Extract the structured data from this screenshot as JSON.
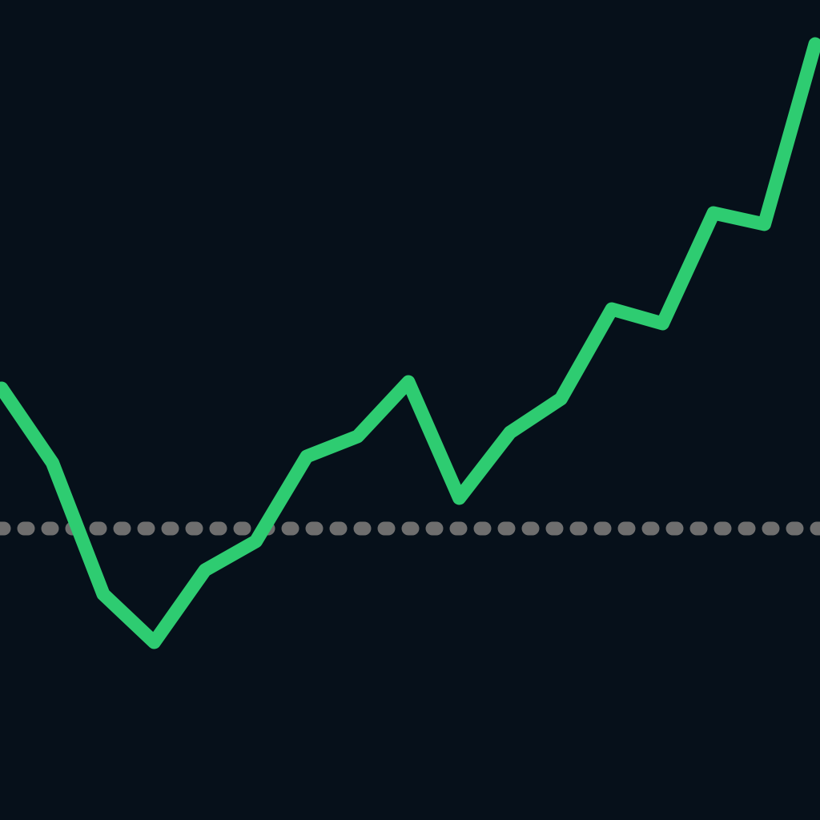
{
  "chart_data": {
    "type": "line",
    "title": "",
    "xlabel": "",
    "ylabel": "",
    "x": [
      0,
      1,
      2,
      3,
      4,
      5,
      6,
      7,
      8,
      9,
      10,
      11,
      12,
      13,
      14,
      15,
      16
    ],
    "series": [
      {
        "values": [
          53.9,
          44.6,
          28.2,
          22.2,
          31.2,
          34.8,
          45.4,
          47.9,
          54.7,
          40.2,
          48.4,
          52.6,
          63.8,
          62.0,
          75.8,
          74.4,
          96.9
        ]
      }
    ],
    "reference_line": {
      "value": 36.4,
      "style": "dotted"
    },
    "ylim": [
      0,
      102.4
    ],
    "grid": false,
    "axes_visible": false,
    "legend": "none",
    "colors": {
      "background": "#06101a",
      "line": "#2ecc71",
      "reference": "#6e6e6e"
    }
  }
}
